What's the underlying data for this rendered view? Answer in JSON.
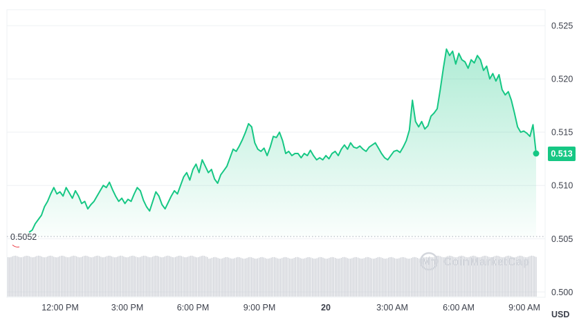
{
  "chart_data": {
    "type": "area",
    "unit": "USD",
    "x_ticks": [
      "12:00 PM",
      "3:00 PM",
      "6:00 PM",
      "9:00 PM",
      "20",
      "3:00 AM",
      "6:00 AM",
      "9:00 AM"
    ],
    "y_ticks": [
      "0.525",
      "0.520",
      "0.515",
      "0.510",
      "0.505",
      "0.500"
    ],
    "ylim": [
      0.4995,
      0.5265
    ],
    "open_price_label": "0.5052",
    "open_price": 0.5052,
    "current_price_label": "0.513",
    "current_price": 0.513,
    "watermark": "CoinMarketCap",
    "line_color": "#16c784",
    "series": [
      {
        "values": [
          0.5056,
          0.5058,
          0.5064,
          0.5068,
          0.5072,
          0.508,
          0.5085,
          0.5092,
          0.5098,
          0.5092,
          0.5094,
          0.509,
          0.5098,
          0.5093,
          0.5088,
          0.5095,
          0.509,
          0.5083,
          0.5085,
          0.5078,
          0.5082,
          0.5085,
          0.509,
          0.5095,
          0.51,
          0.5098,
          0.5103,
          0.5096,
          0.509,
          0.5085,
          0.5088,
          0.5083,
          0.5087,
          0.5085,
          0.5092,
          0.5098,
          0.5095,
          0.5086,
          0.508,
          0.5076,
          0.5085,
          0.5094,
          0.509,
          0.5082,
          0.5078,
          0.5084,
          0.509,
          0.5095,
          0.5092,
          0.51,
          0.5108,
          0.5112,
          0.5105,
          0.5115,
          0.512,
          0.5112,
          0.5124,
          0.5118,
          0.5112,
          0.5115,
          0.5106,
          0.5102,
          0.511,
          0.5114,
          0.5118,
          0.5126,
          0.5134,
          0.5132,
          0.5137,
          0.5143,
          0.515,
          0.5158,
          0.5155,
          0.514,
          0.5134,
          0.5132,
          0.5135,
          0.5128,
          0.5136,
          0.5146,
          0.5145,
          0.515,
          0.5142,
          0.513,
          0.5132,
          0.5128,
          0.513,
          0.513,
          0.5126,
          0.513,
          0.5128,
          0.5133,
          0.5128,
          0.5124,
          0.5126,
          0.5124,
          0.5128,
          0.5125,
          0.513,
          0.5132,
          0.5128,
          0.5134,
          0.5138,
          0.5134,
          0.514,
          0.5136,
          0.5135,
          0.5137,
          0.5134,
          0.5132,
          0.5136,
          0.5138,
          0.514,
          0.5135,
          0.513,
          0.5126,
          0.5124,
          0.5128,
          0.5132,
          0.5133,
          0.5131,
          0.5136,
          0.5142,
          0.5152,
          0.518,
          0.516,
          0.5155,
          0.516,
          0.5153,
          0.5156,
          0.5165,
          0.5168,
          0.5172,
          0.519,
          0.521,
          0.5228,
          0.5222,
          0.5226,
          0.5214,
          0.5224,
          0.5218,
          0.5216,
          0.521,
          0.5218,
          0.5215,
          0.5222,
          0.5218,
          0.5208,
          0.5212,
          0.52,
          0.5205,
          0.5198,
          0.5204,
          0.519,
          0.5185,
          0.5188,
          0.518,
          0.5168,
          0.5155,
          0.515,
          0.5151,
          0.5149,
          0.5146,
          0.5157,
          0.513
        ]
      }
    ],
    "grid": true
  }
}
